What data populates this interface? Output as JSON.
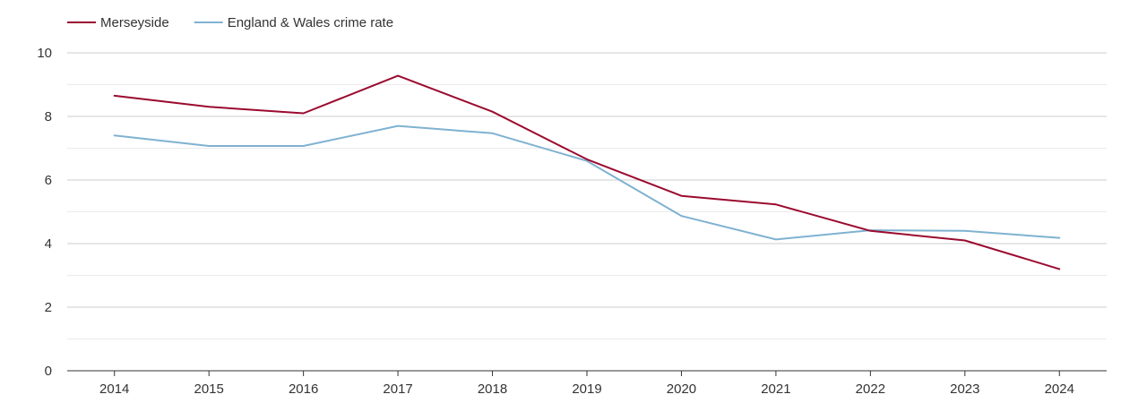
{
  "chart_data": {
    "type": "line",
    "title": "",
    "xlabel": "",
    "ylabel": "",
    "ylim": [
      0,
      10
    ],
    "yticks": [
      0,
      2,
      4,
      6,
      8,
      10
    ],
    "grid": true,
    "legend_position": "top-left",
    "categories": [
      "2014",
      "2015",
      "2016",
      "2017",
      "2018",
      "2019",
      "2020",
      "2021",
      "2022",
      "2023",
      "2024"
    ],
    "series": [
      {
        "name": "Merseyside",
        "color": "#9b0a2f",
        "values": [
          8.65,
          8.3,
          8.1,
          9.28,
          8.15,
          6.65,
          5.5,
          5.23,
          4.4,
          4.1,
          3.2
        ]
      },
      {
        "name": "England & Wales crime rate",
        "color": "#7fb2d1",
        "values": [
          7.4,
          7.07,
          7.07,
          7.7,
          7.47,
          6.6,
          4.87,
          4.13,
          4.42,
          4.4,
          4.18
        ]
      }
    ]
  }
}
